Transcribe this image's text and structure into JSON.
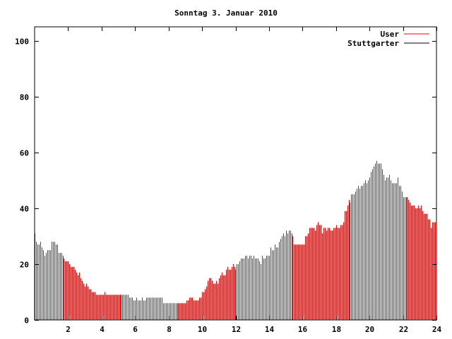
{
  "chart_data": {
    "type": "bar",
    "title": "Sonntag 3. Januar 2010",
    "xlabel": "",
    "ylabel": "",
    "xlim": [
      0,
      24
    ],
    "ylim": [
      0,
      105
    ],
    "x_step_hours": 0.08333,
    "xticks": [
      "2",
      "4",
      "6",
      "8",
      "10",
      "12",
      "14",
      "16",
      "18",
      "20",
      "22",
      "24"
    ],
    "xtick_values": [
      2,
      4,
      6,
      8,
      10,
      12,
      14,
      16,
      18,
      20,
      22,
      24
    ],
    "yticks": [
      "0",
      "20",
      "40",
      "60",
      "80",
      "100"
    ],
    "ytick_values": [
      0,
      20,
      40,
      60,
      80,
      100
    ],
    "legend_position": "top-right",
    "grid": false,
    "series": [
      {
        "name": "User",
        "color": "#ff0000",
        "values": [
          31,
          28,
          27,
          27,
          28,
          26,
          25,
          23,
          24,
          25,
          25,
          25,
          28,
          28,
          28,
          27,
          27,
          24,
          24,
          24,
          23,
          22,
          21,
          21,
          21,
          20,
          19,
          19,
          19,
          18,
          17,
          16,
          17,
          15,
          14,
          13,
          12,
          13,
          12,
          11,
          11,
          10,
          10,
          10,
          9,
          9,
          9,
          9,
          9,
          9,
          10,
          9,
          9,
          9,
          9,
          9,
          9,
          9,
          9,
          9,
          9,
          9,
          9,
          9,
          9,
          9,
          9,
          9,
          8,
          8,
          8,
          7,
          7,
          8,
          7,
          7,
          7,
          8,
          7,
          7,
          8,
          8,
          8,
          8,
          8,
          8,
          8,
          8,
          8,
          8,
          8,
          8,
          6,
          6,
          6,
          6,
          6,
          6,
          6,
          6,
          6,
          6,
          6,
          6,
          6,
          6,
          6,
          6,
          6,
          7,
          7,
          8,
          8,
          8,
          7,
          7,
          7,
          7,
          8,
          8,
          10,
          10,
          11,
          12,
          14,
          15,
          15,
          14,
          13,
          13,
          14,
          13,
          15,
          16,
          17,
          16,
          16,
          18,
          19,
          18,
          18,
          19,
          20,
          19,
          18,
          20,
          20,
          21,
          22,
          22,
          22,
          23,
          23,
          22,
          23,
          23,
          22,
          23,
          22,
          22,
          22,
          21,
          20,
          23,
          22,
          22,
          23,
          23,
          23,
          26,
          25,
          25,
          27,
          26,
          26,
          28,
          29,
          30,
          31,
          30,
          32,
          31,
          32,
          32,
          31,
          30,
          27,
          27,
          27,
          27,
          27,
          27,
          27,
          27,
          30,
          30,
          31,
          33,
          33,
          33,
          33,
          32,
          34,
          35,
          34,
          34,
          31,
          33,
          33,
          32,
          33,
          33,
          32,
          32,
          33,
          33,
          34,
          33,
          33,
          34,
          34,
          35,
          39,
          39,
          41,
          43,
          42,
          45,
          45,
          45,
          46,
          47,
          48,
          47,
          48,
          48,
          49,
          50,
          49,
          50,
          51,
          53,
          54,
          55,
          56,
          57,
          56,
          56,
          56,
          54,
          52,
          50,
          51,
          51,
          52,
          50,
          49,
          49,
          49,
          49,
          51,
          48,
          48,
          46,
          44,
          44,
          44,
          44,
          43,
          42,
          41,
          41,
          41,
          40,
          40,
          41,
          40,
          41,
          39,
          38,
          38,
          38,
          36,
          36,
          33,
          35,
          35,
          35
        ]
      },
      {
        "name": "Stuttgarter",
        "color": "#000000",
        "values": []
      }
    ]
  }
}
